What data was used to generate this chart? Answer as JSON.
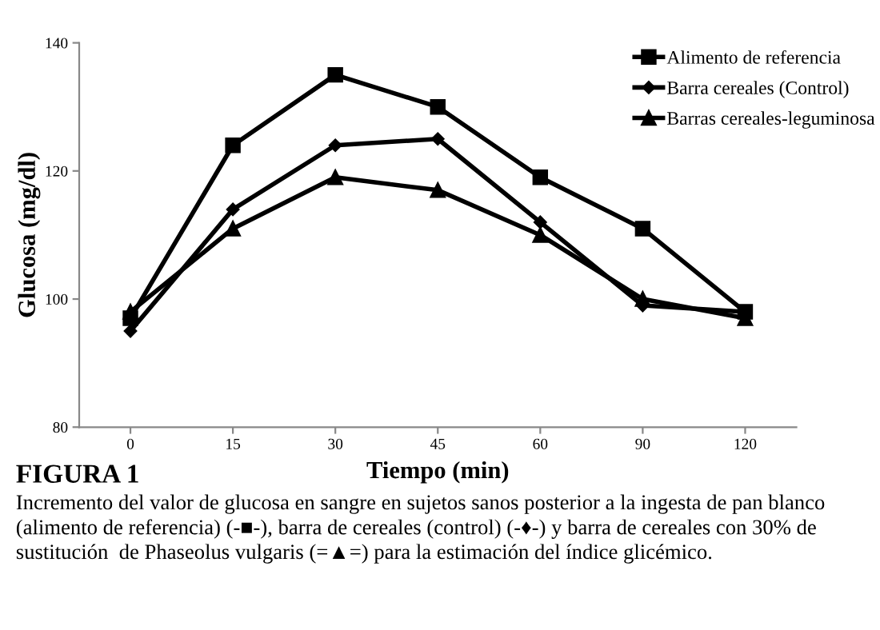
{
  "chart_data": {
    "type": "line",
    "title": "FIGURA 1",
    "xlabel": "Tiempo (min)",
    "ylabel": "Glucosa (mg/dl)",
    "categories": [
      "0",
      "15",
      "30",
      "45",
      "60",
      "90",
      "120"
    ],
    "series": [
      {
        "name": "Alimento de referencia",
        "color": "#000000",
        "marker": "square",
        "values": [
          97,
          124,
          135,
          130,
          119,
          111,
          98
        ]
      },
      {
        "name": "Barra cereales (Control)",
        "color": "#000000",
        "marker": "diamond",
        "values": [
          95,
          114,
          124,
          125,
          112,
          99,
          98
        ]
      },
      {
        "name": "Barras cereales-leguminosa",
        "color": "#000000",
        "marker": "triangle",
        "values": [
          98,
          111,
          119,
          117,
          110,
          100,
          97
        ]
      }
    ],
    "ylim": [
      80,
      140
    ],
    "yticks": [
      80,
      100,
      120,
      140
    ],
    "grid": false,
    "legend": "top right",
    "line_style": "solid",
    "annotations": [
      "Incremento del valor de glucosa en sangre en sujetos sanos posterior a la ingesta de pan blanco (alimento de referencia) (-■-), barra de cereales (control) (-♦-) y barra de cereales con 30% de sustitución  de Phaseolus vulgaris (=▲=) para la estimación del índice glicémico."
    ]
  }
}
